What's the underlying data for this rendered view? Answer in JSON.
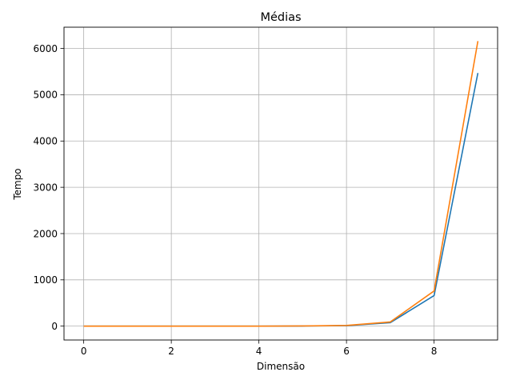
{
  "chart_data": {
    "type": "line",
    "title": "Médias",
    "xlabel": "Dimensão",
    "ylabel": "Tempo",
    "xlim": [
      -0.45,
      9.45
    ],
    "ylim": [
      -300,
      6460
    ],
    "xticks": [
      0,
      2,
      4,
      6,
      8
    ],
    "yticks": [
      0,
      1000,
      2000,
      3000,
      4000,
      5000,
      6000
    ],
    "xtick_labels": [
      "0",
      "2",
      "4",
      "6",
      "8"
    ],
    "ytick_labels": [
      "0",
      "1000",
      "2000",
      "3000",
      "4000",
      "5000",
      "6000"
    ],
    "grid": true,
    "legend": null,
    "x": [
      0,
      1,
      2,
      3,
      4,
      5,
      6,
      7,
      8,
      9
    ],
    "series": [
      {
        "values": [
          0,
          0,
          0,
          0,
          0,
          2,
          10,
          75,
          660,
          5470
        ],
        "color": "#1f77b4"
      },
      {
        "values": [
          0,
          0,
          0,
          0,
          0,
          3,
          15,
          90,
          760,
          6160
        ],
        "color": "#ff7f0e"
      }
    ]
  }
}
